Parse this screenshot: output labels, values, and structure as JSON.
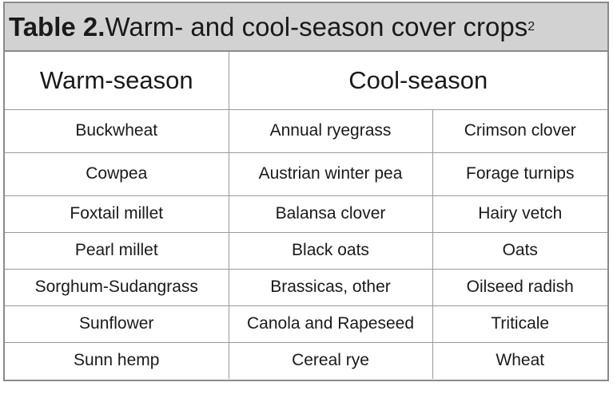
{
  "caption": {
    "label": "Table 2.",
    "title": " Warm- and cool-season cover crops",
    "footnote": "2"
  },
  "headers": {
    "warm": "Warm-season",
    "cool": "Cool-season"
  },
  "rows": [
    [
      "Buckwheat",
      "Annual ryegrass",
      "Crimson clover"
    ],
    [
      "Cowpea",
      "Austrian winter pea",
      "Forage turnips"
    ],
    [
      "Foxtail millet",
      "Balansa clover",
      "Hairy vetch"
    ],
    [
      "Pearl millet",
      "Black oats",
      "Oats"
    ],
    [
      "Sorghum-Sudangrass",
      "Brassicas, other",
      "Oilseed radish"
    ],
    [
      "Sunflower",
      "Canola and Rapeseed",
      "Triticale"
    ],
    [
      "Sunn hemp",
      "Cereal rye",
      "Wheat"
    ]
  ]
}
